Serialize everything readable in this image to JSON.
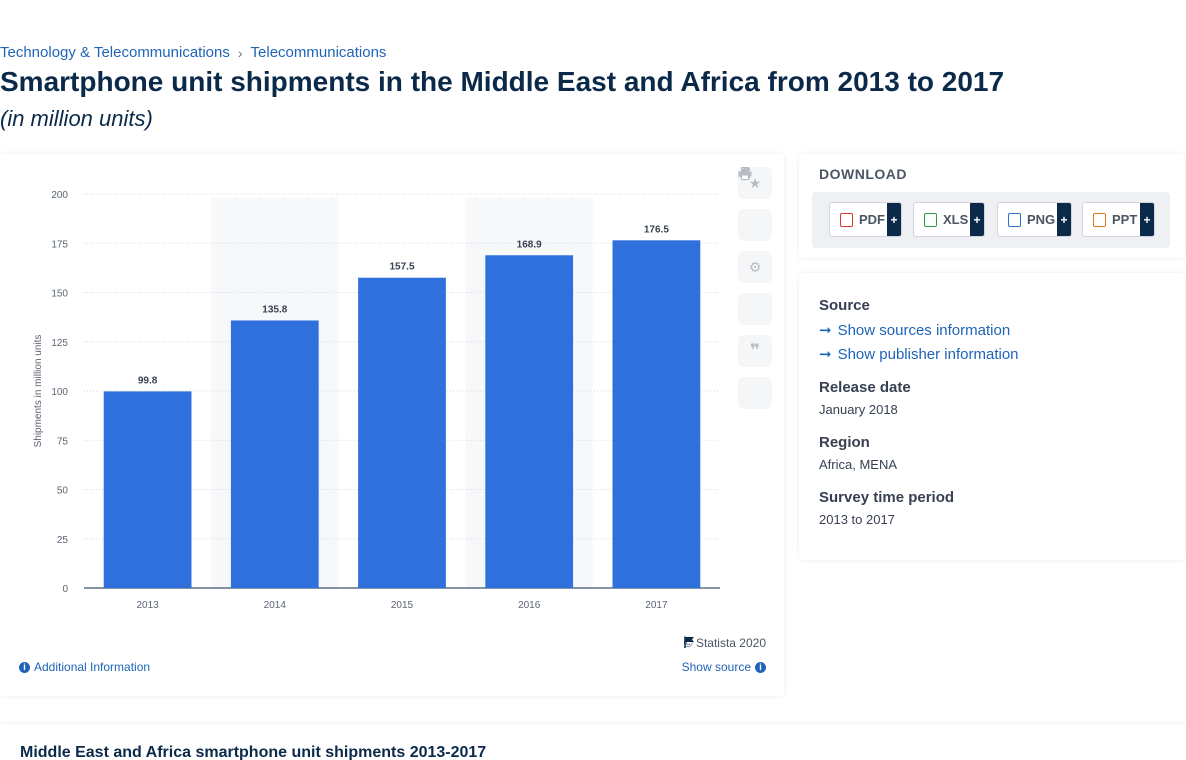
{
  "breadcrumb": {
    "item1": "Technology & Telecommunications",
    "sep": "›",
    "item2": "Telecommunications"
  },
  "page": {
    "title": "Smartphone unit shipments in the Middle East and Africa from 2013 to 2017",
    "subtitle": "(in million units)"
  },
  "chart": {
    "copyright": "© Statista 2020",
    "additional_info": "Additional Information",
    "show_source": "Show source"
  },
  "download": {
    "heading": "DOWNLOAD",
    "buttons": [
      {
        "label": "PDF",
        "icon": "pdf-file-icon",
        "color": "#d9372b"
      },
      {
        "label": "XLS",
        "icon": "xls-file-icon",
        "color": "#2e9a44"
      },
      {
        "label": "PNG",
        "icon": "png-file-icon",
        "color": "#2f6fd1"
      },
      {
        "label": "PPT",
        "icon": "ppt-file-icon",
        "color": "#e07a1f"
      }
    ],
    "plus": "+"
  },
  "info": {
    "source_heading": "Source",
    "sources_link": "Show sources information",
    "publisher_link": "Show publisher information",
    "release_heading": "Release date",
    "release_value": "January 2018",
    "region_heading": "Region",
    "region_value": "Africa, MENA",
    "survey_heading": "Survey time period",
    "survey_value": "2013 to 2017"
  },
  "bottom": {
    "title": "Middle East and Africa smartphone unit shipments 2013-2017"
  },
  "chart_data": {
    "type": "bar",
    "categories": [
      "2013",
      "2014",
      "2015",
      "2016",
      "2017"
    ],
    "values": [
      99.8,
      135.8,
      157.5,
      168.9,
      176.5
    ],
    "ylabel": "Shipments in million units",
    "xlabel": "",
    "ylim": [
      0,
      200
    ],
    "yticks": [
      0,
      25,
      50,
      75,
      100,
      125,
      150,
      175,
      200
    ],
    "bar_color": "#3070dc",
    "grid": true
  }
}
